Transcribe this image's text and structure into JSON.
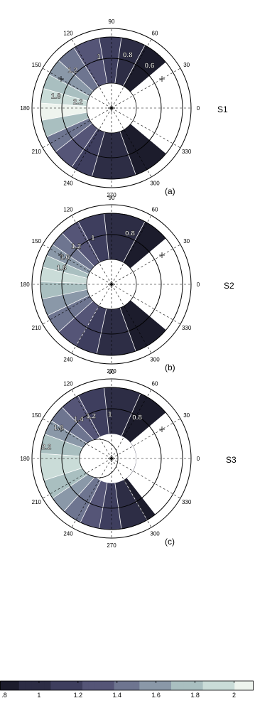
{
  "chart_data": {
    "type": "polar-contour",
    "angle_ticks": [
      "0",
      "30",
      "60",
      "90",
      "120",
      "150",
      "180",
      "210",
      "240",
      "270",
      "300",
      "330"
    ],
    "colormap": [
      "#1c1c2c",
      "#2d2d45",
      "#3e3e5e",
      "#555577",
      "#6e7590",
      "#8a98a8",
      "#a9bfc0",
      "#cadcd8",
      "#eef4ee"
    ],
    "colorbar": {
      "range": [
        0.8,
        2.1
      ],
      "ticks": [
        0.8,
        1,
        1.2,
        1.4,
        1.6,
        1.8,
        2
      ],
      "tick_labels": [
        ".8",
        "1",
        "1.2",
        "1.4",
        "1.6",
        "1.8",
        "2"
      ]
    },
    "panels": [
      {
        "panel_label": "(a)",
        "row_label": "S1",
        "contour_levels": [
          0.6,
          0.8,
          1,
          1.2,
          1.4,
          1.6,
          1.8,
          2,
          2.2
        ],
        "contour_labels": [
          {
            "text": "0.8",
            "angle": 73,
            "r": 0.78
          },
          {
            "text": "0.6",
            "angle": 48,
            "r": 0.8
          },
          {
            "text": "1",
            "angle": 104,
            "r": 0.74
          },
          {
            "text": "1.2",
            "angle": 136,
            "r": 0.76
          },
          {
            "text": "1.8",
            "angle": 168,
            "r": 0.8
          },
          {
            "text": "2.2",
            "angle": 170,
            "r": 0.48
          }
        ]
      },
      {
        "panel_label": "(b)",
        "row_label": "S2",
        "contour_levels": [
          0.8,
          1,
          1.2,
          1.4,
          1.6,
          1.8,
          2,
          2.2
        ],
        "contour_labels": [
          {
            "text": "0.8",
            "angle": 70,
            "r": 0.76
          },
          {
            "text": "1",
            "angle": 112,
            "r": 0.7
          },
          {
            "text": "1.2",
            "angle": 133,
            "r": 0.73
          },
          {
            "text": "1.6",
            "angle": 150,
            "r": 0.76
          },
          {
            "text": "1.8",
            "angle": 162,
            "r": 0.74
          }
        ]
      },
      {
        "panel_label": "(c)",
        "row_label": "S3",
        "contour_levels": [
          0.8,
          1,
          1.2,
          1.4,
          1.6,
          1.8,
          2,
          2.2
        ],
        "contour_labels": [
          {
            "text": "0.8",
            "angle": 58,
            "r": 0.68
          },
          {
            "text": "1",
            "angle": 92,
            "r": 0.62
          },
          {
            "text": "1.2",
            "angle": 116,
            "r": 0.66
          },
          {
            "text": "1.4",
            "angle": 130,
            "r": 0.72
          },
          {
            "text": "1.8",
            "angle": 150,
            "r": 0.86
          },
          {
            "text": "2.2",
            "angle": 170,
            "r": 0.93
          }
        ]
      }
    ]
  }
}
